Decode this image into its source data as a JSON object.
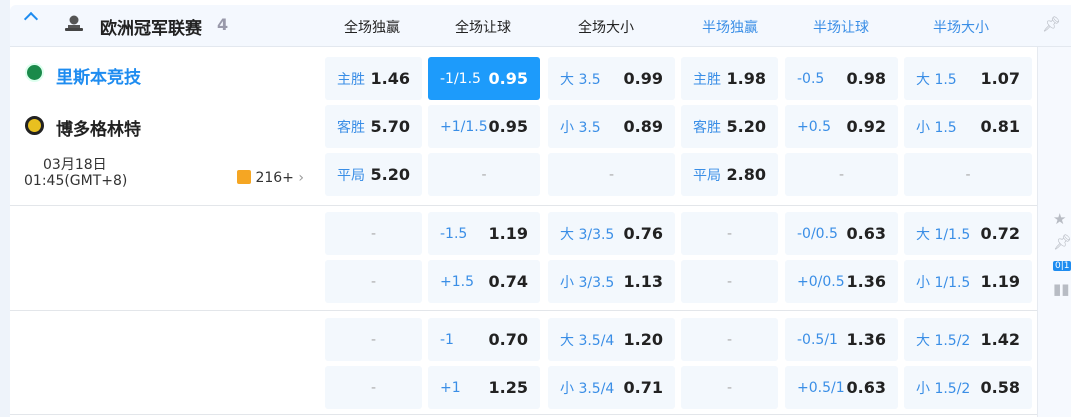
{
  "league": {
    "name": "欧洲冠军联赛",
    "count": "4"
  },
  "columns": [
    "全场独赢",
    "全场让球",
    "全场大小",
    "半场独赢",
    "半场让球",
    "半场大小"
  ],
  "column_colors": [
    "#222222",
    "#222222",
    "#222222",
    "#3a8ee6",
    "#3a8ee6",
    "#3a8ee6"
  ],
  "match": {
    "home": "里斯本竞技",
    "away": "博多格林特",
    "date": "03月18日",
    "time": "01:45(GMT+8)",
    "more_markets": "216+"
  },
  "groups": [
    {
      "rows": [
        [
          {
            "label": "主胜",
            "value": "1.46"
          },
          {
            "label": "-1/1.5",
            "value": "0.95",
            "selected": true
          },
          {
            "label": "大 3.5",
            "value": "0.99"
          },
          {
            "label": "主胜",
            "value": "1.98"
          },
          {
            "label": "-0.5",
            "value": "0.98"
          },
          {
            "label": "大 1.5",
            "value": "1.07"
          }
        ],
        [
          {
            "label": "客胜",
            "value": "5.70"
          },
          {
            "label": "+1/1.5",
            "value": "0.95"
          },
          {
            "label": "小 3.5",
            "value": "0.89"
          },
          {
            "label": "客胜",
            "value": "5.20"
          },
          {
            "label": "+0.5",
            "value": "0.92"
          },
          {
            "label": "小 1.5",
            "value": "0.81"
          }
        ],
        [
          {
            "label": "平局",
            "value": "5.20"
          },
          {
            "dash": "-"
          },
          {
            "dash": "-"
          },
          {
            "label": "平局",
            "value": "2.80"
          },
          {
            "dash": "-"
          },
          {
            "dash": "-"
          }
        ]
      ]
    },
    {
      "rows": [
        [
          {
            "dash": "-"
          },
          {
            "label": "-1.5",
            "value": "1.19"
          },
          {
            "label": "大 3/3.5",
            "value": "0.76"
          },
          {
            "dash": "-"
          },
          {
            "label": "-0/0.5",
            "value": "0.63"
          },
          {
            "label": "大 1/1.5",
            "value": "0.72"
          }
        ],
        [
          {
            "dash": "-"
          },
          {
            "label": "+1.5",
            "value": "0.74"
          },
          {
            "label": "小 3/3.5",
            "value": "1.13"
          },
          {
            "dash": "-"
          },
          {
            "label": "+0/0.5",
            "value": "1.36"
          },
          {
            "label": "小 1/1.5",
            "value": "1.19"
          }
        ]
      ]
    },
    {
      "rows": [
        [
          {
            "dash": "-"
          },
          {
            "label": "-1",
            "value": "0.70"
          },
          {
            "label": "大 3.5/4",
            "value": "1.20"
          },
          {
            "dash": "-"
          },
          {
            "label": "-0.5/1",
            "value": "1.36"
          },
          {
            "label": "大 1.5/2",
            "value": "1.42"
          }
        ],
        [
          {
            "dash": "-"
          },
          {
            "label": "+1",
            "value": "1.25"
          },
          {
            "label": "小 3.5/4",
            "value": "0.71"
          },
          {
            "dash": "-"
          },
          {
            "label": "+0.5/1",
            "value": "0.63"
          },
          {
            "label": "小 1.5/2",
            "value": "0.58"
          }
        ]
      ]
    }
  ],
  "side": {
    "score_badge": "0|1"
  }
}
